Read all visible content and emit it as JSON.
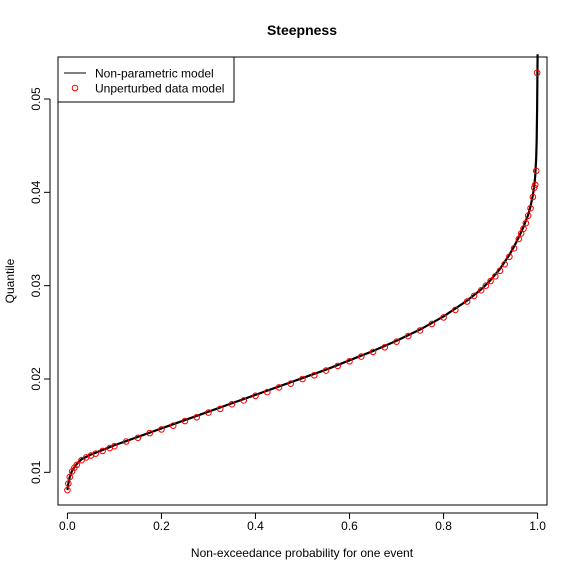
{
  "chart_data": {
    "type": "line",
    "title": "Steepness",
    "xlabel": "Non-exceedance probability for one event",
    "ylabel": "Quantile",
    "xlim": [
      -0.02,
      1.02
    ],
    "ylim": [
      0.0065,
      0.0545
    ],
    "x_ticks": [
      "0.0",
      "0.2",
      "0.4",
      "0.6",
      "0.8",
      "1.0"
    ],
    "y_ticks": [
      "0.01",
      "0.02",
      "0.03",
      "0.04",
      "0.05"
    ],
    "legend_position": "top-left",
    "grid": false,
    "series": [
      {
        "name": "Non-parametric model",
        "style": "line",
        "color": "#000000",
        "x": [
          0.0,
          0.002,
          0.005,
          0.01,
          0.02,
          0.03,
          0.05,
          0.075,
          0.1,
          0.15,
          0.2,
          0.25,
          0.3,
          0.35,
          0.4,
          0.45,
          0.5,
          0.55,
          0.6,
          0.65,
          0.7,
          0.75,
          0.8,
          0.85,
          0.88,
          0.9,
          0.92,
          0.94,
          0.95,
          0.96,
          0.97,
          0.98,
          0.985,
          0.99,
          0.993,
          0.995,
          0.997,
          0.998,
          0.999,
          1.0
        ],
        "y": [
          0.0081,
          0.0088,
          0.0095,
          0.0102,
          0.0109,
          0.0114,
          0.0119,
          0.0124,
          0.0129,
          0.0138,
          0.0147,
          0.0156,
          0.0165,
          0.0174,
          0.0183,
          0.0192,
          0.0201,
          0.021,
          0.022,
          0.023,
          0.0241,
          0.0253,
          0.0267,
          0.0284,
          0.0296,
          0.0306,
          0.0318,
          0.0333,
          0.0342,
          0.0352,
          0.0363,
          0.0376,
          0.0385,
          0.0397,
          0.0407,
          0.0418,
          0.0437,
          0.0455,
          0.049,
          0.0548
        ]
      },
      {
        "name": "Unperturbed data model",
        "style": "points",
        "color": "#ff0000",
        "x": [
          0.0,
          0.002,
          0.005,
          0.01,
          0.015,
          0.02,
          0.03,
          0.04,
          0.05,
          0.06,
          0.075,
          0.09,
          0.1,
          0.125,
          0.15,
          0.175,
          0.2,
          0.225,
          0.25,
          0.275,
          0.3,
          0.325,
          0.35,
          0.375,
          0.4,
          0.425,
          0.45,
          0.475,
          0.5,
          0.525,
          0.55,
          0.575,
          0.6,
          0.625,
          0.65,
          0.675,
          0.7,
          0.725,
          0.75,
          0.775,
          0.8,
          0.825,
          0.85,
          0.865,
          0.88,
          0.89,
          0.9,
          0.91,
          0.92,
          0.93,
          0.94,
          0.95,
          0.96,
          0.965,
          0.97,
          0.975,
          0.98,
          0.985,
          0.99,
          0.993,
          0.995,
          0.997,
          0.999
        ],
        "y": [
          0.0081,
          0.0088,
          0.0095,
          0.0101,
          0.0105,
          0.0108,
          0.0113,
          0.0116,
          0.0118,
          0.012,
          0.0123,
          0.0126,
          0.0128,
          0.0133,
          0.0137,
          0.0142,
          0.0146,
          0.015,
          0.0155,
          0.0159,
          0.0164,
          0.0168,
          0.0173,
          0.0177,
          0.0182,
          0.0186,
          0.0191,
          0.0195,
          0.02,
          0.0204,
          0.0209,
          0.0214,
          0.0219,
          0.0224,
          0.0229,
          0.0234,
          0.024,
          0.0246,
          0.0252,
          0.0259,
          0.0266,
          0.0274,
          0.0283,
          0.0289,
          0.0295,
          0.03,
          0.0305,
          0.031,
          0.0316,
          0.0323,
          0.0331,
          0.034,
          0.035,
          0.0356,
          0.0361,
          0.0367,
          0.0375,
          0.0383,
          0.0395,
          0.0405,
          0.0408,
          0.0423,
          0.0528
        ]
      }
    ]
  }
}
